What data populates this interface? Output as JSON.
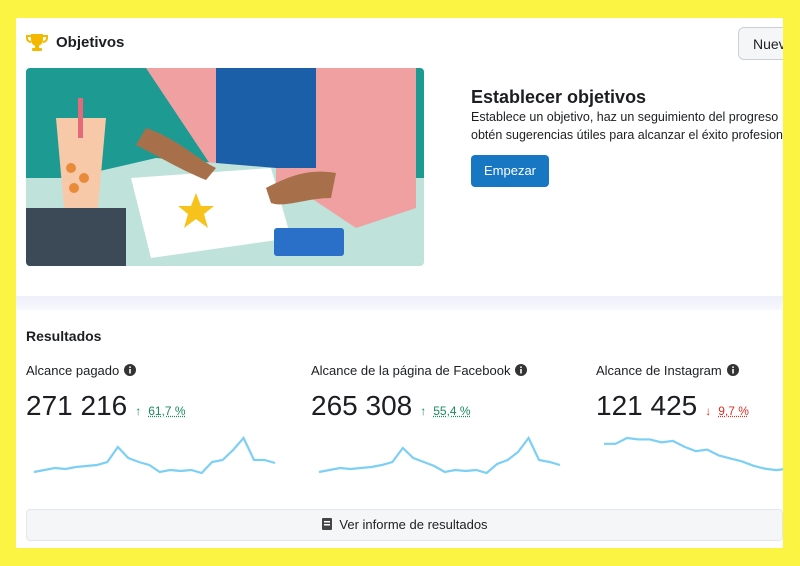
{
  "header": {
    "title": "Objetivos",
    "button": "Nuev"
  },
  "promo": {
    "title": "Establecer objetivos",
    "lines": [
      "Establece un objetivo, haz un seguimiento del progreso",
      "obtén sugerencias útiles para alcanzar el éxito profesion"
    ],
    "button": "Empezar"
  },
  "results": {
    "title": "Resultados",
    "metrics": [
      {
        "label": "Alcance pagado",
        "value": "271 216",
        "arrow": "↑",
        "change": "61,7 %",
        "direction": "up",
        "trend": [
          8,
          10,
          12,
          11,
          13,
          14,
          15,
          18,
          33,
          22,
          18,
          15,
          8,
          10,
          9,
          10,
          7,
          18,
          20,
          30,
          42,
          20,
          20,
          17
        ]
      },
      {
        "label": "Alcance de la página de Facebook",
        "value": "265 308",
        "arrow": "↑",
        "change": "55,4 %",
        "direction": "up",
        "trend": [
          8,
          10,
          12,
          11,
          12,
          13,
          15,
          18,
          32,
          22,
          18,
          14,
          8,
          10,
          9,
          10,
          7,
          16,
          20,
          28,
          42,
          20,
          18,
          15
        ]
      },
      {
        "label": "Alcance de Instagram",
        "value": "121 425",
        "arrow": "↓",
        "change": "9,7 %",
        "direction": "down",
        "trend": [
          30,
          30,
          34,
          33,
          33,
          31,
          32,
          28,
          25,
          26,
          22,
          20,
          18,
          15,
          13,
          12,
          13,
          10,
          14,
          12,
          18,
          14
        ]
      }
    ],
    "footer": "Ver informe de resultados"
  }
}
